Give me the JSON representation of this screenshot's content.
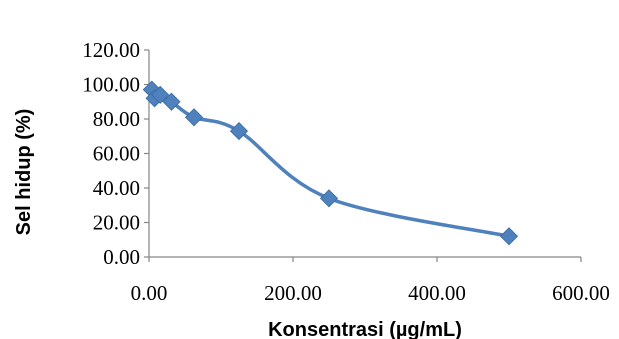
{
  "chart_data": {
    "type": "scatter",
    "title": "",
    "xlabel": "Konsentrasi (µg/mL)",
    "ylabel": "Sel hidup (%)",
    "xlim": [
      0,
      600
    ],
    "ylim": [
      0,
      120
    ],
    "x_ticks": [
      "0.00",
      "200.00",
      "400.00",
      "600.00"
    ],
    "y_ticks": [
      "0.00",
      "20.00",
      "40.00",
      "60.00",
      "80.00",
      "100.00",
      "120.00"
    ],
    "x_tick_values": [
      0,
      200,
      400,
      600
    ],
    "y_tick_values": [
      0,
      20,
      40,
      60,
      80,
      100,
      120
    ],
    "grid": false,
    "smooth_line": true,
    "marker": "diamond",
    "series_color": "#4f81bd",
    "series": [
      {
        "x": [
          3.9,
          7.8,
          15.6,
          31.25,
          62.5,
          125,
          250,
          500
        ],
        "y": [
          97,
          92,
          94,
          90,
          81,
          73,
          34,
          12
        ]
      }
    ]
  }
}
